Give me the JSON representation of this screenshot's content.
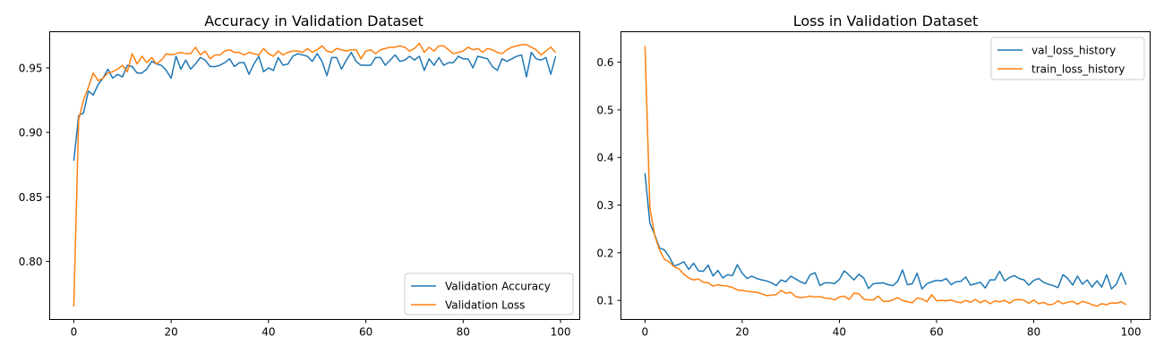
{
  "chart_data": [
    {
      "type": "line",
      "title": "Accuracy in Validation Dataset",
      "xlabel": "",
      "ylabel": "",
      "xlim": [
        -4.95,
        103.95
      ],
      "ylim": [
        0.755,
        0.978
      ],
      "xticks": [
        0,
        20,
        40,
        60,
        80,
        100
      ],
      "yticks": [
        0.8,
        0.85,
        0.9,
        0.95
      ],
      "ytick_labels": [
        "0.80",
        "0.85",
        "0.90",
        "0.95"
      ],
      "legend_position": "lower-right",
      "grid": false,
      "series": [
        {
          "name": "Validation Accuracy",
          "color": "#1f77b4",
          "values": [
            0.878,
            0.913,
            0.915,
            0.932,
            0.929,
            0.937,
            0.942,
            0.949,
            0.942,
            0.945,
            0.943,
            0.952,
            0.951,
            0.946,
            0.946,
            0.949,
            0.955,
            0.953,
            0.952,
            0.948,
            0.942,
            0.959,
            0.949,
            0.956,
            0.949,
            0.953,
            0.958,
            0.956,
            0.951,
            0.951,
            0.952,
            0.954,
            0.957,
            0.951,
            0.954,
            0.954,
            0.945,
            0.953,
            0.959,
            0.947,
            0.95,
            0.948,
            0.958,
            0.952,
            0.953,
            0.959,
            0.961,
            0.96,
            0.959,
            0.955,
            0.961,
            0.955,
            0.944,
            0.958,
            0.958,
            0.949,
            0.956,
            0.962,
            0.955,
            0.952,
            0.952,
            0.952,
            0.958,
            0.958,
            0.952,
            0.956,
            0.96,
            0.955,
            0.956,
            0.959,
            0.956,
            0.959,
            0.948,
            0.957,
            0.952,
            0.958,
            0.952,
            0.954,
            0.954,
            0.959,
            0.957,
            0.957,
            0.95,
            0.959,
            0.958,
            0.957,
            0.951,
            0.948,
            0.957,
            0.955,
            0.957,
            0.959,
            0.96,
            0.943,
            0.962,
            0.957,
            0.956,
            0.958,
            0.945,
            0.959
          ]
        },
        {
          "name": "Validation Loss",
          "color": "#ff7f0e",
          "values": [
            0.765,
            0.91,
            0.925,
            0.935,
            0.946,
            0.94,
            0.942,
            0.946,
            0.947,
            0.949,
            0.952,
            0.947,
            0.961,
            0.953,
            0.959,
            0.954,
            0.958,
            0.953,
            0.956,
            0.961,
            0.96,
            0.961,
            0.962,
            0.961,
            0.961,
            0.966,
            0.96,
            0.963,
            0.957,
            0.96,
            0.96,
            0.963,
            0.964,
            0.962,
            0.962,
            0.96,
            0.962,
            0.961,
            0.96,
            0.965,
            0.961,
            0.959,
            0.963,
            0.96,
            0.962,
            0.963,
            0.963,
            0.962,
            0.965,
            0.962,
            0.964,
            0.967,
            0.963,
            0.962,
            0.965,
            0.964,
            0.963,
            0.964,
            0.964,
            0.957,
            0.963,
            0.964,
            0.961,
            0.964,
            0.965,
            0.966,
            0.966,
            0.967,
            0.966,
            0.963,
            0.965,
            0.969,
            0.962,
            0.966,
            0.963,
            0.967,
            0.967,
            0.964,
            0.961,
            0.962,
            0.963,
            0.966,
            0.964,
            0.965,
            0.962,
            0.965,
            0.964,
            0.962,
            0.961,
            0.964,
            0.966,
            0.967,
            0.968,
            0.968,
            0.966,
            0.964,
            0.96,
            0.963,
            0.966,
            0.962
          ]
        }
      ]
    },
    {
      "type": "line",
      "title": "Loss in Validation Dataset",
      "xlabel": "",
      "ylabel": "",
      "xlim": [
        -4.95,
        103.95
      ],
      "ylim": [
        0.06,
        0.664
      ],
      "xticks": [
        0,
        20,
        40,
        60,
        80,
        100
      ],
      "yticks": [
        0.1,
        0.2,
        0.3,
        0.4,
        0.5,
        0.6
      ],
      "ytick_labels": [
        "0.1",
        "0.2",
        "0.3",
        "0.4",
        "0.5",
        "0.6"
      ],
      "legend_position": "upper-right",
      "grid": false,
      "series": [
        {
          "name": "val_loss_history",
          "color": "#1f77b4",
          "values": [
            0.367,
            0.262,
            0.238,
            0.21,
            0.206,
            0.191,
            0.172,
            0.176,
            0.181,
            0.165,
            0.178,
            0.162,
            0.161,
            0.174,
            0.151,
            0.163,
            0.147,
            0.154,
            0.152,
            0.175,
            0.157,
            0.146,
            0.151,
            0.146,
            0.143,
            0.141,
            0.137,
            0.131,
            0.143,
            0.139,
            0.151,
            0.145,
            0.139,
            0.135,
            0.154,
            0.158,
            0.131,
            0.137,
            0.137,
            0.135,
            0.144,
            0.162,
            0.153,
            0.143,
            0.155,
            0.147,
            0.125,
            0.135,
            0.136,
            0.137,
            0.133,
            0.131,
            0.14,
            0.164,
            0.133,
            0.135,
            0.157,
            0.124,
            0.135,
            0.139,
            0.142,
            0.141,
            0.146,
            0.133,
            0.139,
            0.14,
            0.149,
            0.132,
            0.135,
            0.138,
            0.126,
            0.143,
            0.143,
            0.161,
            0.141,
            0.148,
            0.152,
            0.146,
            0.143,
            0.132,
            0.142,
            0.146,
            0.138,
            0.134,
            0.131,
            0.127,
            0.154,
            0.146,
            0.132,
            0.151,
            0.134,
            0.143,
            0.128,
            0.141,
            0.128,
            0.154,
            0.124,
            0.134,
            0.158,
            0.133
          ]
        },
        {
          "name": "train_loss_history",
          "color": "#ff7f0e",
          "values": [
            0.634,
            0.295,
            0.236,
            0.206,
            0.186,
            0.181,
            0.171,
            0.166,
            0.155,
            0.147,
            0.143,
            0.145,
            0.138,
            0.137,
            0.13,
            0.133,
            0.131,
            0.13,
            0.127,
            0.122,
            0.121,
            0.119,
            0.118,
            0.117,
            0.114,
            0.11,
            0.111,
            0.112,
            0.121,
            0.115,
            0.117,
            0.108,
            0.106,
            0.107,
            0.109,
            0.107,
            0.108,
            0.105,
            0.104,
            0.101,
            0.107,
            0.109,
            0.102,
            0.115,
            0.114,
            0.103,
            0.101,
            0.101,
            0.109,
            0.098,
            0.098,
            0.101,
            0.106,
            0.1,
            0.097,
            0.095,
            0.105,
            0.103,
            0.097,
            0.112,
            0.099,
            0.1,
            0.099,
            0.101,
            0.097,
            0.095,
            0.1,
            0.096,
            0.102,
            0.095,
            0.1,
            0.093,
            0.099,
            0.097,
            0.1,
            0.094,
            0.101,
            0.102,
            0.1,
            0.094,
            0.101,
            0.093,
            0.096,
            0.091,
            0.092,
            0.099,
            0.093,
            0.096,
            0.098,
            0.092,
            0.098,
            0.095,
            0.091,
            0.088,
            0.093,
            0.091,
            0.095,
            0.094,
            0.097,
            0.091
          ]
        }
      ]
    }
  ]
}
